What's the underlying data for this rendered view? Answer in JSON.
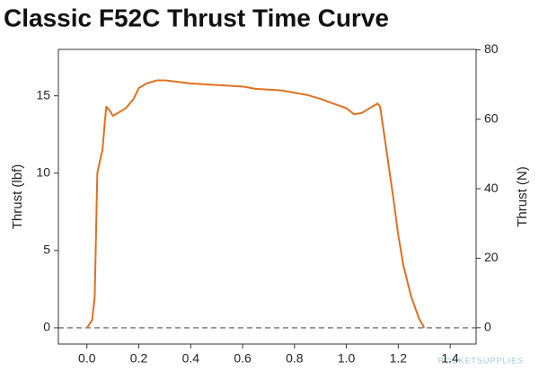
{
  "chart_data": {
    "type": "line",
    "title": "Classic F52C Thrust Time Curve",
    "ylabel": "Thrust (lbf)",
    "y2label": "Thrust (N)",
    "watermark": "ROCKETSUPPLIES",
    "xlim": [
      -0.11,
      1.5
    ],
    "xticks": [
      {
        "value": 0,
        "label": "0.0"
      },
      0.2,
      0.4,
      0.6,
      0.8,
      {
        "value": 1,
        "label": "1.0"
      },
      1.2,
      1.4
    ],
    "ylim": [
      -1.05,
      18
    ],
    "yticks": [
      0,
      5,
      10,
      15
    ],
    "y2lim": [
      -4.7,
      80.1
    ],
    "y2ticks": [
      0,
      20,
      40,
      60,
      80
    ],
    "zero_line": true,
    "x": [
      0,
      0.02,
      0.03,
      0.035,
      0.04,
      0.05,
      0.06,
      0.07,
      0.075,
      0.09,
      0.1,
      0.12,
      0.15,
      0.18,
      0.2,
      0.23,
      0.27,
      0.3,
      0.35,
      0.4,
      0.45,
      0.5,
      0.55,
      0.6,
      0.65,
      0.7,
      0.75,
      0.8,
      0.85,
      0.9,
      0.95,
      1.0,
      1.03,
      1.06,
      1.09,
      1.12,
      1.13,
      1.15,
      1.18,
      1.2,
      1.22,
      1.25,
      1.28,
      1.3
    ],
    "series": [
      {
        "name": "Thrust",
        "color": "#e07020",
        "values": [
          0,
          0.5,
          2,
          6,
          10,
          10.8,
          11.5,
          13.5,
          14.3,
          14,
          13.7,
          13.9,
          14.2,
          14.8,
          15.5,
          15.8,
          16,
          16,
          15.9,
          15.8,
          15.75,
          15.7,
          15.65,
          15.6,
          15.45,
          15.4,
          15.35,
          15.2,
          15.05,
          14.8,
          14.5,
          14.2,
          13.8,
          13.9,
          14.2,
          14.5,
          14.3,
          12,
          8.5,
          6,
          4,
          2,
          0.6,
          0
        ]
      }
    ]
  }
}
